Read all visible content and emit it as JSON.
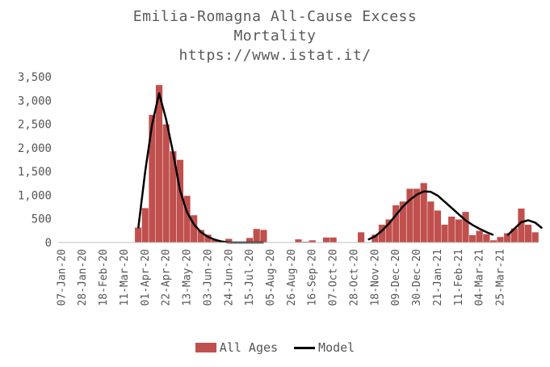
{
  "chart_data": {
    "type": "bar",
    "title_lines": [
      "Emilia-Romagna All-Cause Excess",
      "Mortality",
      "https://www.istat.it/"
    ],
    "ylim": [
      0,
      3500
    ],
    "yticks": [
      "0",
      "500",
      "1,000",
      "1,500",
      "2,000",
      "2,500",
      "3,000",
      "3,500"
    ],
    "ytick_values": [
      0,
      500,
      1000,
      1500,
      2000,
      2500,
      3000,
      3500
    ],
    "grid": false,
    "legend_position": "bottom",
    "x_labels": [
      "07-Jan-20",
      "28-Jan-20",
      "18-Feb-20",
      "11-Mar-20",
      "01-Apr-20",
      "22-Apr-20",
      "13-May-20",
      "03-Jun-20",
      "24-Jun-20",
      "15-Jul-20",
      "05-Aug-20",
      "26-Aug-20",
      "16-Sep-20",
      "07-Oct-20",
      "28-Oct-20",
      "18-Nov-20",
      "09-Dec-20",
      "30-Dec-20",
      "21-Jan-21",
      "11-Feb-21",
      "04-Mar-21",
      "25-Mar-21"
    ],
    "series": [
      {
        "name": "All Ages",
        "type": "bar",
        "color": "#c0504d",
        "values": [
          0,
          0,
          0,
          0,
          0,
          0,
          0,
          0,
          0,
          0,
          0,
          320,
          730,
          2700,
          3330,
          2500,
          1930,
          1750,
          990,
          580,
          270,
          170,
          60,
          20,
          80,
          0,
          0,
          100,
          290,
          270,
          0,
          0,
          0,
          0,
          70,
          20,
          50,
          0,
          110,
          110,
          0,
          0,
          0,
          220,
          0,
          170,
          380,
          490,
          790,
          870,
          1140,
          1140,
          1260,
          870,
          680,
          380,
          550,
          490,
          650,
          160,
          250,
          180,
          50,
          120,
          200,
          300,
          720,
          380,
          220
        ]
      },
      {
        "name": "Model",
        "type": "line",
        "color": "#000000",
        "segments": [
          {
            "start": 11,
            "values": [
              300,
              1500,
              2500,
              3150,
              2600,
              1900,
              1100,
              640,
              380,
              220,
              120,
              60,
              20,
              0,
              0,
              0,
              0,
              0,
              0
            ]
          },
          {
            "start": 44,
            "values": [
              60,
              130,
              250,
              400,
              580,
              760,
              900,
              1010,
              1080,
              1070,
              990,
              860,
              730,
              600,
              470,
              370,
              290,
              220,
              160
            ]
          },
          {
            "start": 64,
            "values": [
              150,
              290,
              430,
              470,
              420,
              300
            ]
          }
        ]
      }
    ]
  }
}
